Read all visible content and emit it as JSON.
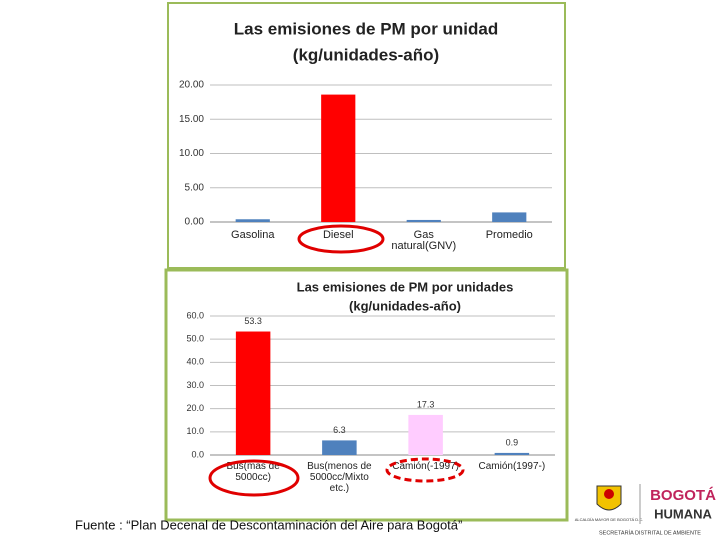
{
  "chart_data": [
    {
      "type": "bar",
      "title": "Las emisiones de PM por unidad",
      "subtitle": "(kg/unidades-año)",
      "categories": [
        "Gasolina",
        "Diesel",
        "Gas natural(GNV)",
        "Promedio"
      ],
      "values": [
        0.4,
        18.6,
        0.3,
        1.4
      ],
      "colors": [
        "#4f81bd",
        "#ff0000",
        "#4f81bd",
        "#4f81bd"
      ],
      "ylim": [
        0,
        20
      ],
      "yticks": [
        {
          "value": 0,
          "label": "0.00"
        },
        {
          "value": 5,
          "label": "5.00"
        },
        {
          "value": 10,
          "label": "10.00"
        },
        {
          "value": 15,
          "label": "15.00"
        },
        {
          "value": 20,
          "label": "20.00"
        }
      ],
      "grid": true,
      "data_labels": false
    },
    {
      "type": "bar",
      "title": "Las emisiones de PM por unidades",
      "subtitle": "(kg/unidades-año)",
      "categories": [
        "Bus(mas de 5000cc)",
        "Bus(menos de 5000cc/Mixto etc.)",
        "Camión(-1997)",
        "Camión(1997-)"
      ],
      "values": [
        53.3,
        6.3,
        17.3,
        0.9
      ],
      "colors": [
        "#ff0000",
        "#4f81bd",
        "#ffccff",
        "#4f81bd"
      ],
      "ylim": [
        0,
        60
      ],
      "yticks": [
        {
          "value": 0,
          "label": "0.0"
        },
        {
          "value": 10,
          "label": "10.0"
        },
        {
          "value": 20,
          "label": "20.0"
        },
        {
          "value": 30,
          "label": "30.0"
        },
        {
          "value": 40,
          "label": "40.0"
        },
        {
          "value": 50,
          "label": "50.0"
        },
        {
          "value": 60,
          "label": "60.0"
        }
      ],
      "grid": true,
      "data_labels": true
    }
  ],
  "footer": {
    "source": "Fuente : “Plan Decenal de Descontaminación del Aire para Bogotá”",
    "logo": {
      "alcaldia": "ALCALDÍA MAYOR DE BOGOTÁ D.C.",
      "bogota": "BOGOTÁ",
      "humana": "HUMANA",
      "secretaria": "SECRETARÍA DISTRITAL DE AMBIENTE"
    }
  }
}
